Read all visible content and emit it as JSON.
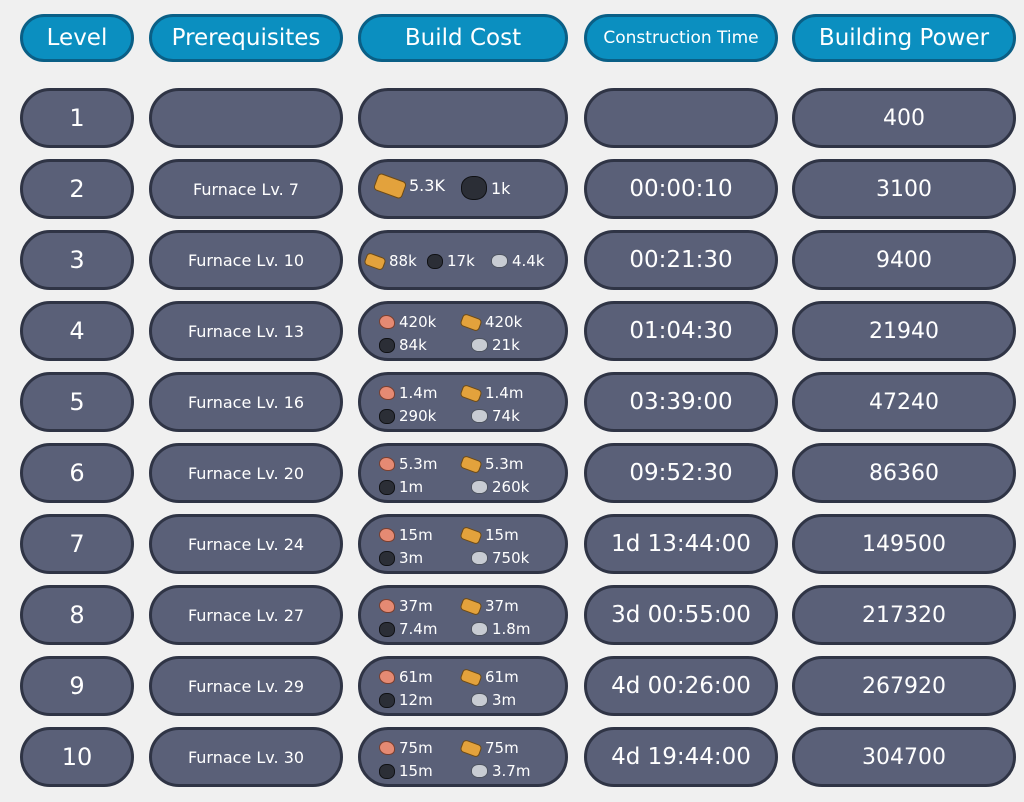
{
  "headers": {
    "level": "Level",
    "prerequisites": "Prerequisites",
    "build_cost": "Build Cost",
    "construction_time": "Construction Time",
    "building_power": "Building Power"
  },
  "rows": [
    {
      "level": "1",
      "prereq": "",
      "time": "",
      "power": "400",
      "cost": []
    },
    {
      "level": "2",
      "prereq": "Furnace Lv. 7",
      "time": "00:00:10",
      "power": "3100",
      "cost": [
        {
          "icon": "wood-icon",
          "value": "5.3K"
        },
        {
          "icon": "coal-icon",
          "value": "1k"
        }
      ]
    },
    {
      "level": "3",
      "prereq": "Furnace Lv. 10",
      "time": "00:21:30",
      "power": "9400",
      "cost": [
        {
          "icon": "wood-icon",
          "value": "88k"
        },
        {
          "icon": "coal-icon",
          "value": "17k"
        },
        {
          "icon": "iron-icon",
          "value": "4.4k"
        }
      ]
    },
    {
      "level": "4",
      "prereq": "Furnace Lv. 13",
      "time": "01:04:30",
      "power": "21940",
      "cost": [
        {
          "icon": "meat-icon",
          "value": "420k"
        },
        {
          "icon": "wood-icon",
          "value": "420k"
        },
        {
          "icon": "coal-icon",
          "value": "84k"
        },
        {
          "icon": "iron-icon",
          "value": "21k"
        }
      ]
    },
    {
      "level": "5",
      "prereq": "Furnace Lv. 16",
      "time": "03:39:00",
      "power": "47240",
      "cost": [
        {
          "icon": "meat-icon",
          "value": "1.4m"
        },
        {
          "icon": "wood-icon",
          "value": "1.4m"
        },
        {
          "icon": "coal-icon",
          "value": "290k"
        },
        {
          "icon": "iron-icon",
          "value": "74k"
        }
      ]
    },
    {
      "level": "6",
      "prereq": "Furnace Lv. 20",
      "time": "09:52:30",
      "power": "86360",
      "cost": [
        {
          "icon": "meat-icon",
          "value": "5.3m"
        },
        {
          "icon": "wood-icon",
          "value": "5.3m"
        },
        {
          "icon": "coal-icon",
          "value": "1m"
        },
        {
          "icon": "iron-icon",
          "value": "260k"
        }
      ]
    },
    {
      "level": "7",
      "prereq": "Furnace Lv. 24",
      "time": "1d 13:44:00",
      "power": "149500",
      "cost": [
        {
          "icon": "meat-icon",
          "value": "15m"
        },
        {
          "icon": "wood-icon",
          "value": "15m"
        },
        {
          "icon": "coal-icon",
          "value": "3m"
        },
        {
          "icon": "iron-icon",
          "value": "750k"
        }
      ]
    },
    {
      "level": "8",
      "prereq": "Furnace Lv. 27",
      "time": "3d 00:55:00",
      "power": "217320",
      "cost": [
        {
          "icon": "meat-icon",
          "value": "37m"
        },
        {
          "icon": "wood-icon",
          "value": "37m"
        },
        {
          "icon": "coal-icon",
          "value": "7.4m"
        },
        {
          "icon": "iron-icon",
          "value": "1.8m"
        }
      ]
    },
    {
      "level": "9",
      "prereq": "Furnace Lv. 29",
      "time": "4d 00:26:00",
      "power": "267920",
      "cost": [
        {
          "icon": "meat-icon",
          "value": "61m"
        },
        {
          "icon": "wood-icon",
          "value": "61m"
        },
        {
          "icon": "coal-icon",
          "value": "12m"
        },
        {
          "icon": "iron-icon",
          "value": "3m"
        }
      ]
    },
    {
      "level": "10",
      "prereq": "Furnace Lv. 30",
      "time": "4d 19:44:00",
      "power": "304700",
      "cost": [
        {
          "icon": "meat-icon",
          "value": "75m"
        },
        {
          "icon": "wood-icon",
          "value": "75m"
        },
        {
          "icon": "coal-icon",
          "value": "15m"
        },
        {
          "icon": "iron-icon",
          "value": "3.7m"
        }
      ]
    }
  ]
}
